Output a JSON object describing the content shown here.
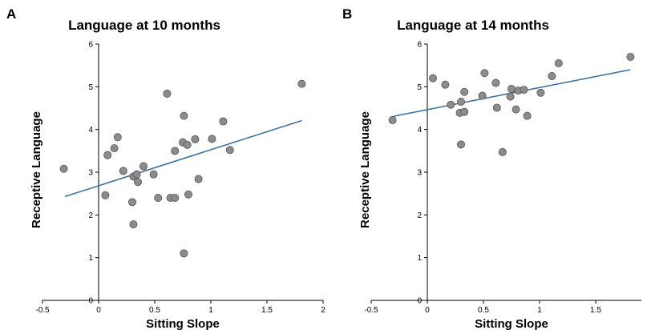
{
  "chart_data": [
    {
      "type": "scatter",
      "panel_label": "A",
      "title": "Language at 10 months",
      "xlabel": "Sitting Slope",
      "ylabel": "Receptive Language",
      "xlim": [
        -0.5,
        2
      ],
      "ylim": [
        0,
        6
      ],
      "xticks": [
        "-0.5",
        "0",
        "0.5",
        "1",
        "1.5",
        "2"
      ],
      "yticks": [
        "0",
        "1",
        "2",
        "3",
        "4",
        "5",
        "6"
      ],
      "grid": false,
      "colors": {
        "points": "#8c8c8c",
        "fit_line": "#3f73a0"
      },
      "points": [
        {
          "x": -0.31,
          "y": 3.08
        },
        {
          "x": 0.06,
          "y": 2.46
        },
        {
          "x": 0.08,
          "y": 3.4
        },
        {
          "x": 0.14,
          "y": 3.56
        },
        {
          "x": 0.17,
          "y": 3.82
        },
        {
          "x": 0.22,
          "y": 3.03
        },
        {
          "x": 0.3,
          "y": 2.3
        },
        {
          "x": 0.31,
          "y": 2.9
        },
        {
          "x": 0.31,
          "y": 1.78
        },
        {
          "x": 0.34,
          "y": 2.95
        },
        {
          "x": 0.35,
          "y": 2.77
        },
        {
          "x": 0.4,
          "y": 3.14
        },
        {
          "x": 0.49,
          "y": 2.95
        },
        {
          "x": 0.53,
          "y": 2.4
        },
        {
          "x": 0.61,
          "y": 4.84
        },
        {
          "x": 0.64,
          "y": 2.4
        },
        {
          "x": 0.68,
          "y": 2.4
        },
        {
          "x": 0.68,
          "y": 3.5
        },
        {
          "x": 0.75,
          "y": 3.7
        },
        {
          "x": 0.76,
          "y": 4.32
        },
        {
          "x": 0.79,
          "y": 3.64
        },
        {
          "x": 0.8,
          "y": 2.48
        },
        {
          "x": 0.86,
          "y": 3.77
        },
        {
          "x": 0.89,
          "y": 2.84
        },
        {
          "x": 1.01,
          "y": 3.78
        },
        {
          "x": 1.11,
          "y": 4.19
        },
        {
          "x": 1.17,
          "y": 3.52
        },
        {
          "x": 0.76,
          "y": 1.1
        },
        {
          "x": 1.81,
          "y": 5.07
        }
      ],
      "fit_line": {
        "x": [
          -0.3,
          1.81
        ],
        "y": [
          2.43,
          4.21
        ]
      }
    },
    {
      "type": "scatter",
      "panel_label": "B",
      "title": "Language at 14 months",
      "xlabel": "Sitting Slope",
      "ylabel": "Receptive Language",
      "xlim": [
        -0.5,
        2
      ],
      "ylim": [
        0,
        6
      ],
      "xticks": [
        "-0.5",
        "0",
        "0.5",
        "1",
        "1.5"
      ],
      "yticks": [
        "0",
        "1",
        "2",
        "3",
        "4",
        "5",
        "6"
      ],
      "grid": false,
      "colors": {
        "points": "#8c8c8c",
        "fit_line": "#3f73a0"
      },
      "points": [
        {
          "x": -0.31,
          "y": 4.22
        },
        {
          "x": 0.05,
          "y": 5.2
        },
        {
          "x": 0.16,
          "y": 5.05
        },
        {
          "x": 0.21,
          "y": 4.58
        },
        {
          "x": 0.29,
          "y": 4.39
        },
        {
          "x": 0.3,
          "y": 4.65
        },
        {
          "x": 0.3,
          "y": 3.65
        },
        {
          "x": 0.33,
          "y": 4.88
        },
        {
          "x": 0.33,
          "y": 4.41
        },
        {
          "x": 0.49,
          "y": 4.79
        },
        {
          "x": 0.51,
          "y": 5.32
        },
        {
          "x": 0.61,
          "y": 5.09
        },
        {
          "x": 0.62,
          "y": 4.51
        },
        {
          "x": 0.67,
          "y": 3.47
        },
        {
          "x": 0.74,
          "y": 4.77
        },
        {
          "x": 0.75,
          "y": 4.95
        },
        {
          "x": 0.79,
          "y": 4.47
        },
        {
          "x": 0.81,
          "y": 4.91
        },
        {
          "x": 0.86,
          "y": 4.93
        },
        {
          "x": 0.89,
          "y": 4.32
        },
        {
          "x": 1.01,
          "y": 4.86
        },
        {
          "x": 1.11,
          "y": 5.25
        },
        {
          "x": 1.17,
          "y": 5.55
        },
        {
          "x": 1.81,
          "y": 5.7
        }
      ],
      "fit_line": {
        "x": [
          -0.3,
          1.81
        ],
        "y": [
          4.31,
          5.4
        ]
      }
    }
  ]
}
